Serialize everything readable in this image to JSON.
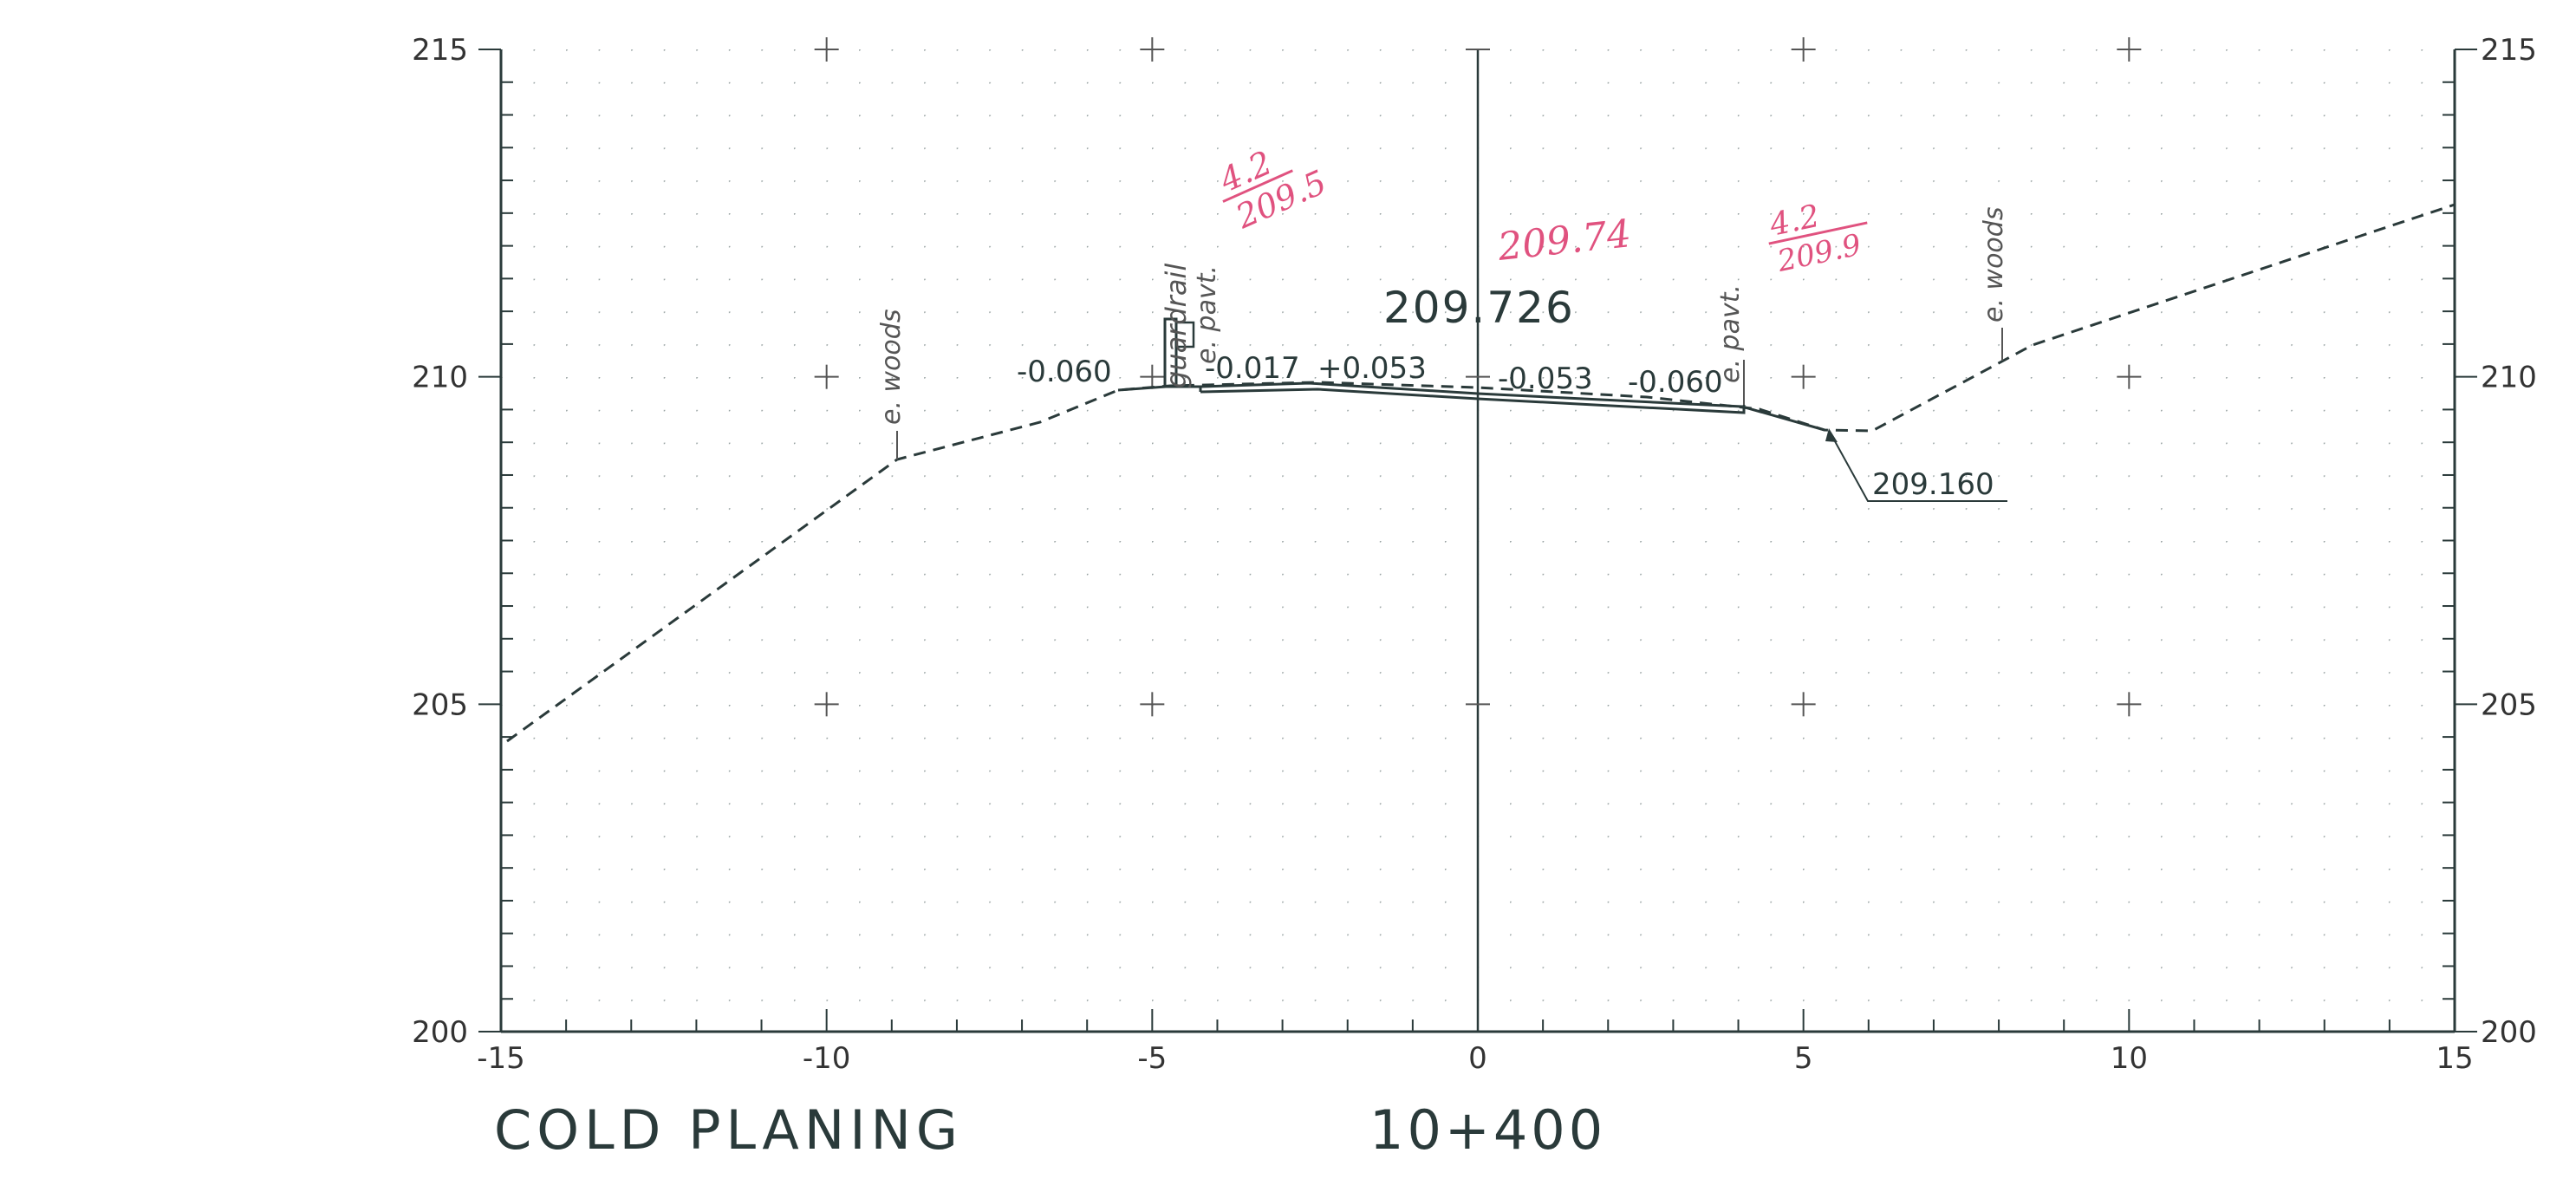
{
  "drawing": {
    "title": "COLD PLANING",
    "station": "10+400",
    "centerline_elevation": "209.726",
    "toe_elevation": "209.160",
    "colors": {
      "ink": "#2a3a3a",
      "grid": "#9aa4a4",
      "redline": "#e0527f"
    }
  },
  "axes": {
    "x_ticks": [
      "-15",
      "-10",
      "-5",
      "0",
      "5",
      "10",
      "15"
    ],
    "y_ticks_left": [
      "215",
      "210",
      "205",
      "200"
    ],
    "y_ticks_right": [
      "215",
      "210",
      "205",
      "200"
    ]
  },
  "slopes": {
    "left_outer": "-0.060",
    "left_inner": "-0.017",
    "left_center": "+0.053",
    "right_center": "-0.053",
    "right_outer": "-0.060"
  },
  "labels": {
    "e_woods_left": "e. woods",
    "guardrail": "guardrail",
    "e_pavt_left": "e. pavt.",
    "e_pavt_right": "e. pavt.",
    "e_woods_right": "e. woods"
  },
  "handwritten": {
    "left_note_top": "4.2",
    "left_note_bottom": "209.5",
    "center_note": "209.74",
    "right_note_top": "4.2",
    "right_note_bottom": "209.9"
  }
}
